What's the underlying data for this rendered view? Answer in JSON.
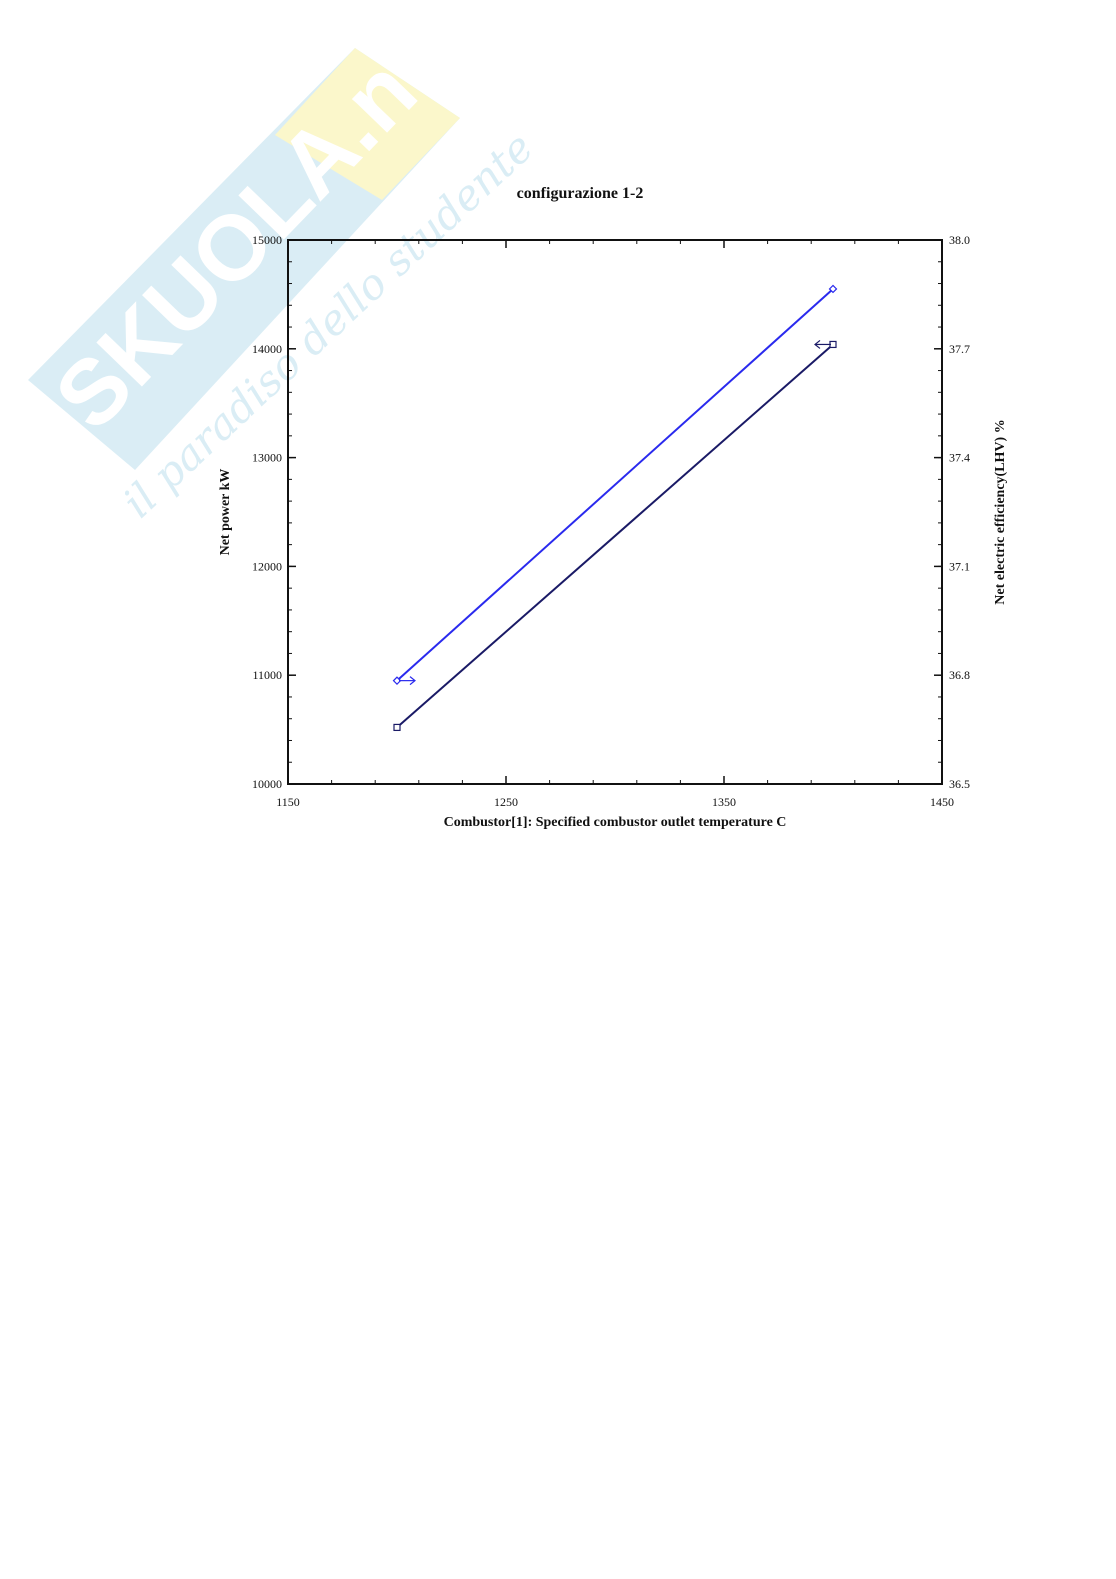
{
  "watermark": {
    "brand": "SKUOLA.net",
    "tagline": "il paradiso dello studente",
    "colors": {
      "shield": "#d6ecf4",
      "accent": "#fbf7c6",
      "text": "#ffffff"
    }
  },
  "chart_data": {
    "type": "line",
    "title": "configurazione 1-2",
    "xlabel": "Combustor[1]: Specified combustor outlet temperature  C",
    "ylabel": "Net power  kW",
    "y2label": "Net electric efficiency(LHV)  %",
    "xlim": [
      1150,
      1450
    ],
    "ylim": [
      10000,
      15000
    ],
    "y2lim": [
      36.5,
      38.0
    ],
    "xticks": [
      "1150",
      "1250",
      "1350",
      "1450"
    ],
    "yticks": [
      "10000",
      "11000",
      "12000",
      "13000",
      "14000",
      "15000"
    ],
    "y2ticks": [
      "36.5",
      "36.8",
      "37.1",
      "37.4",
      "37.7",
      "38.0"
    ],
    "grid": false,
    "series": [
      {
        "axis": "left",
        "color": "#1a1a66",
        "marker": "square",
        "arrow_direction": "left",
        "x": [
          1200,
          1400
        ],
        "y": [
          10520,
          14040
        ]
      },
      {
        "axis": "right",
        "color": "#2a2aee",
        "marker": "diamond",
        "arrow_direction": "right",
        "x": [
          1200,
          1400
        ],
        "y": [
          36.785,
          37.865
        ]
      }
    ]
  }
}
